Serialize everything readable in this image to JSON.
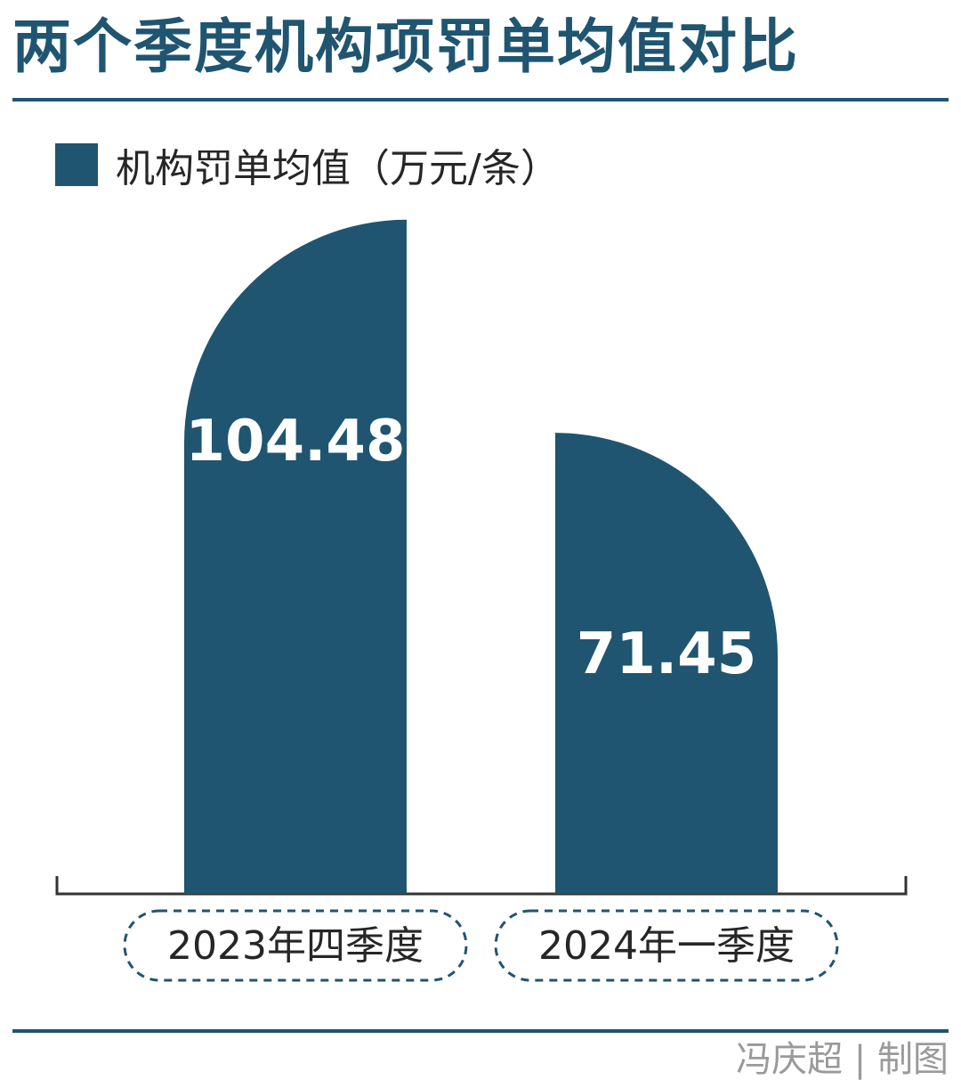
{
  "title": "两个季度机构项罚单均值对比",
  "credit": "冯庆超 | 制图",
  "colors": {
    "primary": "#1f5570",
    "text": "#262626",
    "muted": "#9a9a9a"
  },
  "chart_data": {
    "type": "bar",
    "categories": [
      "2023年四季度",
      "2024年一季度"
    ],
    "series": [
      {
        "name": "机构罚单均值（万元/条）",
        "values": [
          104.48,
          71.45
        ]
      }
    ],
    "ylim": [
      0,
      105
    ]
  }
}
